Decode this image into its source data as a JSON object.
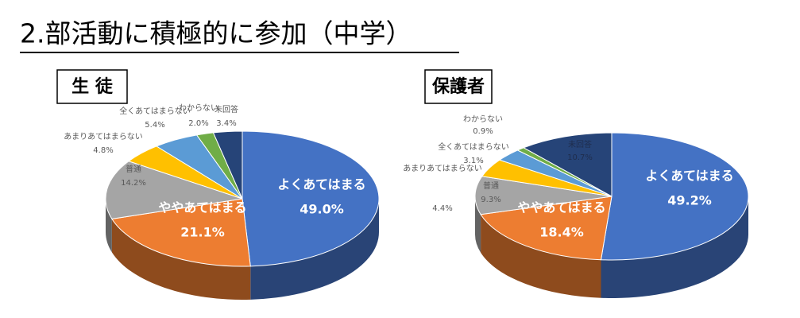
{
  "title": "2.部活動に積極的に参加（中学）",
  "chart_data": [
    {
      "type": "pie",
      "title": "生 徒",
      "categories": [
        "よくあてはまる",
        "ややあてはまる",
        "普通",
        "あまりあてはまらない",
        "全くあてはまらない",
        "わからない",
        "未回答"
      ],
      "values": [
        49.0,
        21.1,
        14.2,
        4.8,
        5.4,
        2.0,
        3.4
      ],
      "value_labels": [
        "49.0%",
        "21.1%",
        "14.2%",
        "4.8%",
        "5.4%",
        "2.0%",
        "3.4%"
      ],
      "colors": [
        "#4472c4",
        "#ed7d31",
        "#a5a5a5",
        "#ffc000",
        "#5b9bd5",
        "#70ad47",
        "#264478"
      ]
    },
    {
      "type": "pie",
      "title": "保護者",
      "categories": [
        "よくあてはまる",
        "ややあてはまる",
        "普通",
        "あまりあてはまらない",
        "全くあてはまらない",
        "わからない",
        "未回答"
      ],
      "values": [
        49.2,
        18.4,
        9.3,
        4.4,
        3.1,
        0.9,
        10.7
      ],
      "value_labels": [
        "49.2%",
        "18.4%",
        "9.3%",
        "4.4%",
        "3.1%",
        "0.9%",
        "10.7%"
      ],
      "colors": [
        "#4472c4",
        "#ed7d31",
        "#a5a5a5",
        "#ffc000",
        "#5b9bd5",
        "#70ad47",
        "#264478"
      ]
    }
  ]
}
